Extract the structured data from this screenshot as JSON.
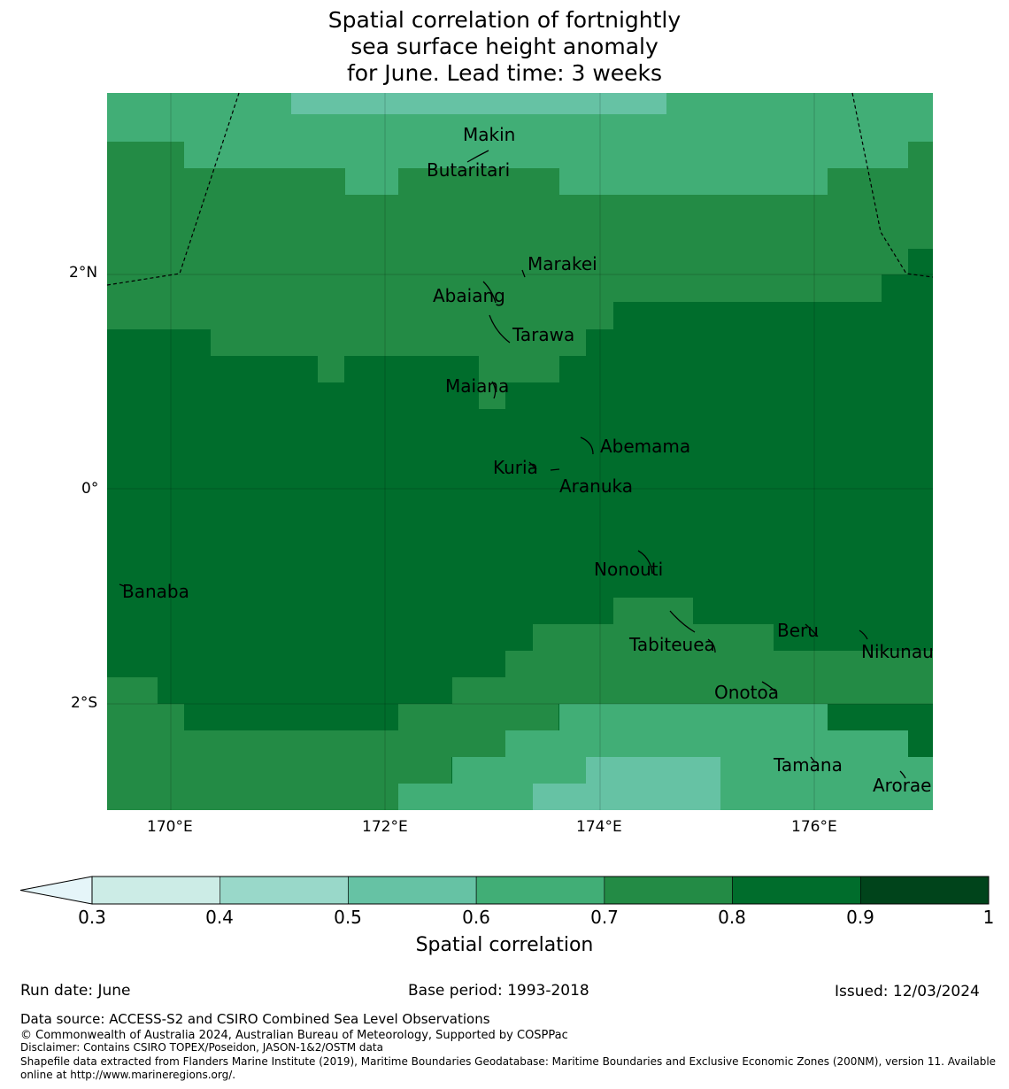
{
  "title": {
    "line1": "Spatial correlation of fortnightly",
    "line2": "sea surface height anomaly",
    "line3": "for June. Lead time: 3 weeks"
  },
  "axes": {
    "lon_ticks": [
      "170°E",
      "172°E",
      "174°E",
      "176°E"
    ],
    "lat_ticks": [
      "2°N",
      "0°",
      "2°S"
    ],
    "lon_range": [
      169.4,
      177.1
    ],
    "lat_range": [
      -3.0,
      3.7
    ]
  },
  "places": [
    {
      "name": "Makin",
      "lon": 173.0,
      "lat": 3.28
    },
    {
      "name": "Butaritari",
      "lon": 172.8,
      "lat": 3.05
    },
    {
      "name": "Marakei",
      "lon": 173.3,
      "lat": 2.0
    },
    {
      "name": "Abaiang",
      "lon": 172.9,
      "lat": 1.85
    },
    {
      "name": "Tarawa",
      "lon": 173.0,
      "lat": 1.45
    },
    {
      "name": "Maiana",
      "lon": 173.0,
      "lat": 0.9
    },
    {
      "name": "Abemama",
      "lon": 173.9,
      "lat": 0.4
    },
    {
      "name": "Kuria",
      "lon": 173.4,
      "lat": 0.22
    },
    {
      "name": "Aranuka",
      "lon": 173.6,
      "lat": 0.17
    },
    {
      "name": "Nonouti",
      "lon": 174.4,
      "lat": -0.65
    },
    {
      "name": "Banaba",
      "lon": 169.5,
      "lat": -0.87
    },
    {
      "name": "Tabiteuea",
      "lon": 174.8,
      "lat": -1.3
    },
    {
      "name": "Beru",
      "lon": 176.0,
      "lat": -1.33
    },
    {
      "name": "Nikunau",
      "lon": 176.45,
      "lat": -1.35
    },
    {
      "name": "Onotoa",
      "lon": 175.55,
      "lat": -1.82
    },
    {
      "name": "Tamana",
      "lon": 175.97,
      "lat": -2.5
    },
    {
      "name": "Arorae",
      "lon": 176.8,
      "lat": -2.65
    }
  ],
  "colorbar": {
    "label": "Spatial correlation",
    "ticks": [
      "0.3",
      "0.4",
      "0.5",
      "0.6",
      "0.7",
      "0.8",
      "0.9",
      "1"
    ],
    "colors": [
      "#ccece6",
      "#99d8c9",
      "#66c2a4",
      "#41ae76",
      "#238b45",
      "#006d2c",
      "#00441b"
    ],
    "extend_color": "#e5f5f9"
  },
  "footer": {
    "run_date": "Run date: June",
    "base_period": "Base period: 1993-2018",
    "issued": "Issued: 12/03/2024",
    "data_source": "Data source: ACCESS-S2 and CSIRO Combined Sea Level Observations",
    "copyright": "© Commonwealth of Australia 2024, Australian Bureau of Meteorology, Supported by COSPPac",
    "disclaimer": "Disclaimer: Contains CSIRO TOPEX/Poseidon, JASON-1&2/OSTM data",
    "shapefile1": "Shapefile data extracted from Flanders Marine Institute (2019), Maritime Boundaries Geodatabase: Maritime Boundaries and Exclusive Economic Zones (200NM), version 11. Available",
    "shapefile2": "online at http://www.marineregions.org/."
  }
}
